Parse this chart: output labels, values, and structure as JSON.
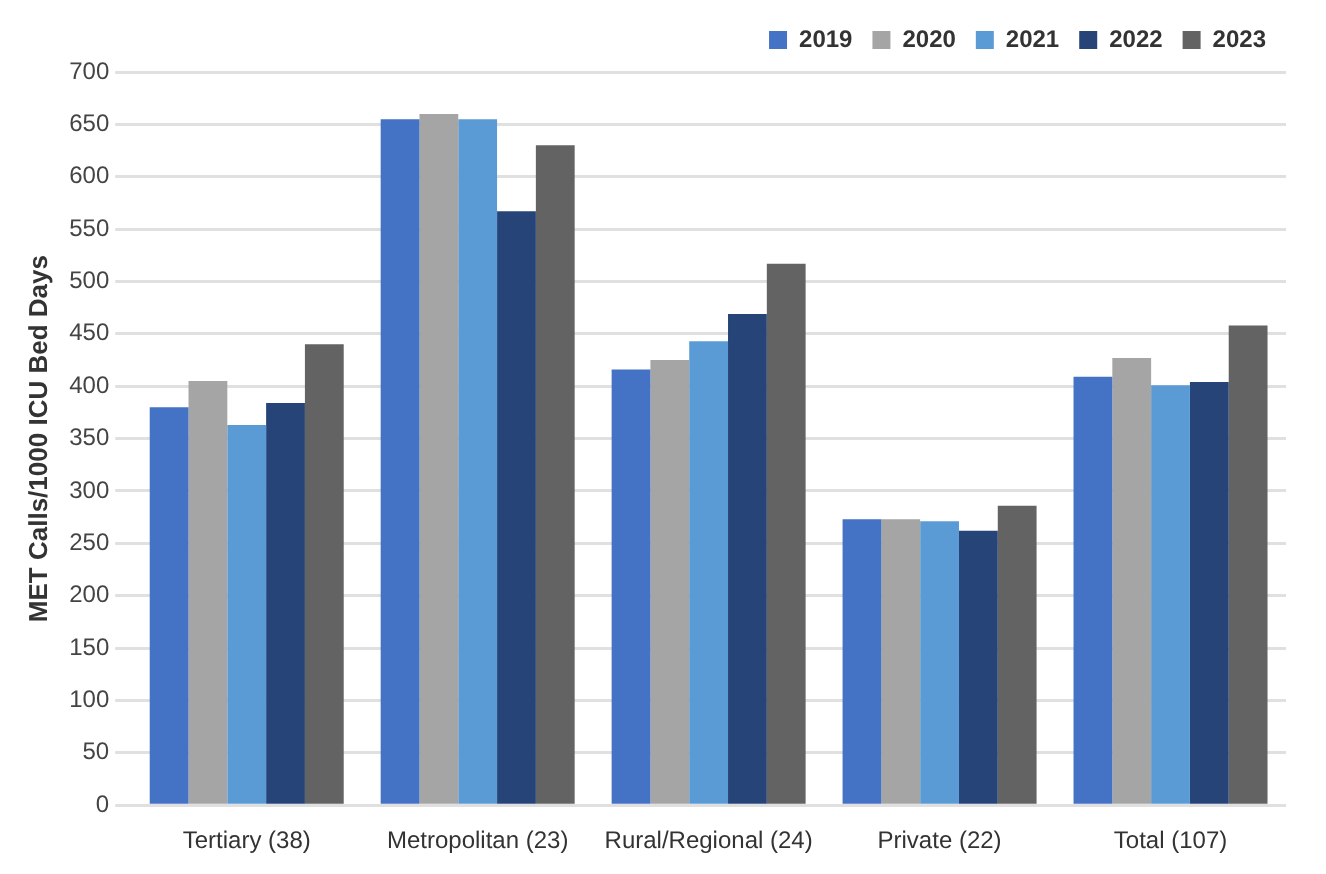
{
  "chart_data": {
    "type": "bar",
    "ylabel": "MET Calls/1000 ICU Bed Days",
    "categories": [
      "Tertiary (38)",
      "Metropolitan (23)",
      "Rural/Regional (24)",
      "Private (22)",
      "Total (107)"
    ],
    "series": [
      {
        "name": "2019",
        "color": "#4472c4",
        "values": [
          380,
          655,
          416,
          273,
          409
        ]
      },
      {
        "name": "2020",
        "color": "#a5a5a5",
        "values": [
          405,
          660,
          425,
          273,
          427
        ]
      },
      {
        "name": "2021",
        "color": "#5b9bd5",
        "values": [
          363,
          655,
          443,
          271,
          401
        ]
      },
      {
        "name": "2022",
        "color": "#264478",
        "values": [
          384,
          567,
          469,
          262,
          404
        ]
      },
      {
        "name": "2023",
        "color": "#636363",
        "values": [
          440,
          630,
          517,
          286,
          458
        ]
      }
    ],
    "ylim": [
      0,
      700
    ],
    "yticks": [
      0,
      50,
      100,
      150,
      200,
      250,
      300,
      350,
      400,
      450,
      500,
      550,
      600,
      650,
      700
    ],
    "grid": "y",
    "legend": "top right"
  }
}
